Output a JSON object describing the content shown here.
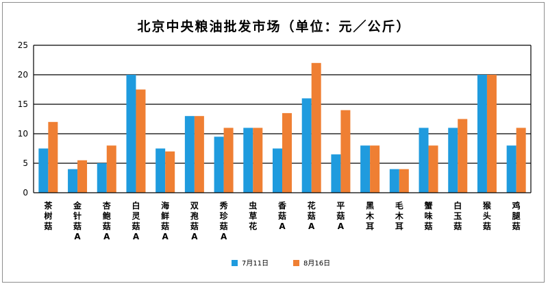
{
  "chart_data": {
    "type": "bar",
    "title": "北京中央粮油批发市场（单位：元／公斤）",
    "categories": [
      "茶树菇",
      "金针菇A",
      "杏鲍菇A",
      "白灵菇A",
      "海鲜菇A",
      "双孢菇A",
      "秀珍菇A",
      "虫草花",
      "香菇A",
      "花菇A",
      "平菇A",
      "黑木耳",
      "毛木耳",
      "蟹味菇",
      "白玉菇",
      "猴头菇",
      "鸡腿菇"
    ],
    "series": [
      {
        "name": "7月11日",
        "color": "#1f9bde",
        "values": [
          7.5,
          4,
          5,
          20,
          7.5,
          13,
          9.5,
          11,
          7.5,
          16,
          6.5,
          8,
          4,
          11,
          11,
          20,
          8
        ]
      },
      {
        "name": "8月16日",
        "color": "#ef7f33",
        "values": [
          12,
          5.5,
          8,
          17.5,
          7,
          13,
          11,
          11,
          13.5,
          22,
          14,
          8,
          4,
          8,
          12.5,
          20,
          11
        ]
      }
    ],
    "ylim": [
      0,
      25
    ],
    "yticks": [
      0,
      5,
      10,
      15,
      20,
      25
    ],
    "grid": true,
    "legend_position": "bottom"
  }
}
